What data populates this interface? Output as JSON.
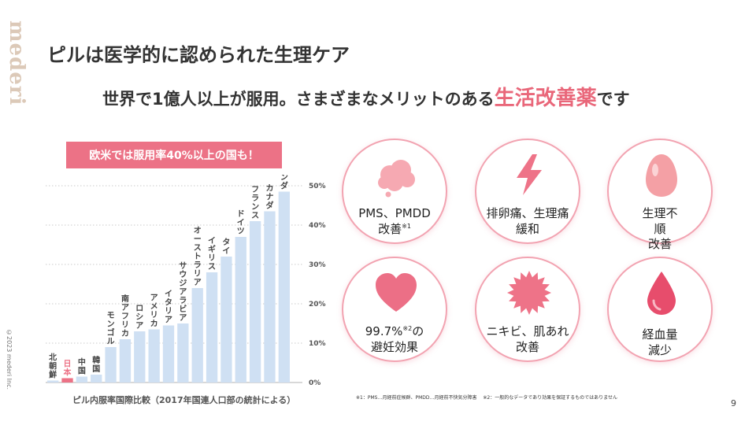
{
  "brand": "mederi",
  "copyright": "©2023 mederi Inc.",
  "page_title": "ピルは医学的に認められた生理ケア",
  "subtitle": {
    "prefix": "世界で1億人以上が服用。さまざまなメリットのある",
    "highlight": "生活改善薬",
    "suffix": "です"
  },
  "callout": "欧米では服用率40%以上の国も！",
  "chart_data": {
    "type": "bar",
    "title": "",
    "xlabel": "",
    "ylabel": "",
    "categories": [
      "北朝鮮",
      "日本",
      "中国",
      "韓国",
      "モンゴル",
      "南アフリカ",
      "ロシア",
      "アメリカ",
      "イタリア",
      "サウジアラビア",
      "オーストラリア",
      "イギリス",
      "タイ",
      "ドイツ",
      "フランス",
      "カナダ",
      "オランダ"
    ],
    "values": [
      0.5,
      1.1,
      1.5,
      2.0,
      9.0,
      11.0,
      13.0,
      13.5,
      14.5,
      15.0,
      24.0,
      28.0,
      32.0,
      37.0,
      41.0,
      43.5,
      48.5
    ],
    "highlight_category": "日本",
    "ylim": [
      0,
      50
    ],
    "yticks": [
      "0%",
      "10%",
      "20%",
      "30%",
      "40%",
      "50%"
    ],
    "colors": {
      "bar": "#cfe0f3",
      "highlight": "#ec7286",
      "highlight_label": "#ec7286"
    },
    "grid": true,
    "caption": "ピル内服率国際比較（2017年国連人口部の統計による）"
  },
  "benefits": [
    {
      "icon": "cloud-icon",
      "lines": "PMS、PMDD\n改善",
      "sup": "※1",
      "color": "#f6a9b2"
    },
    {
      "icon": "lightning-icon",
      "lines": "排卵痛、生理痛\n緩和",
      "sup": "",
      "color": "#ee7388"
    },
    {
      "icon": "egg-icon",
      "lines": "生理不\n順\n改善",
      "sup": "",
      "color": "#f4a0a5"
    },
    {
      "icon": "heart-icon",
      "lines_a": "99.7%",
      "sup": "※2",
      "lines_b": "の\n避妊効果",
      "color": "#ec6f86"
    },
    {
      "icon": "burst-icon",
      "lines": "ニキビ、肌あれ\n改善",
      "sup": "",
      "color": "#ee7388"
    },
    {
      "icon": "drop-icon",
      "lines": "経血量\n減少",
      "sup": "",
      "color": "#e74d6c"
    }
  ],
  "footnote": "※1：PMS…月経前症候群、PMDD…月経前不快気分障害　 ※2：一般的なデータであり効果を保証するものではありません",
  "page_number": "9"
}
